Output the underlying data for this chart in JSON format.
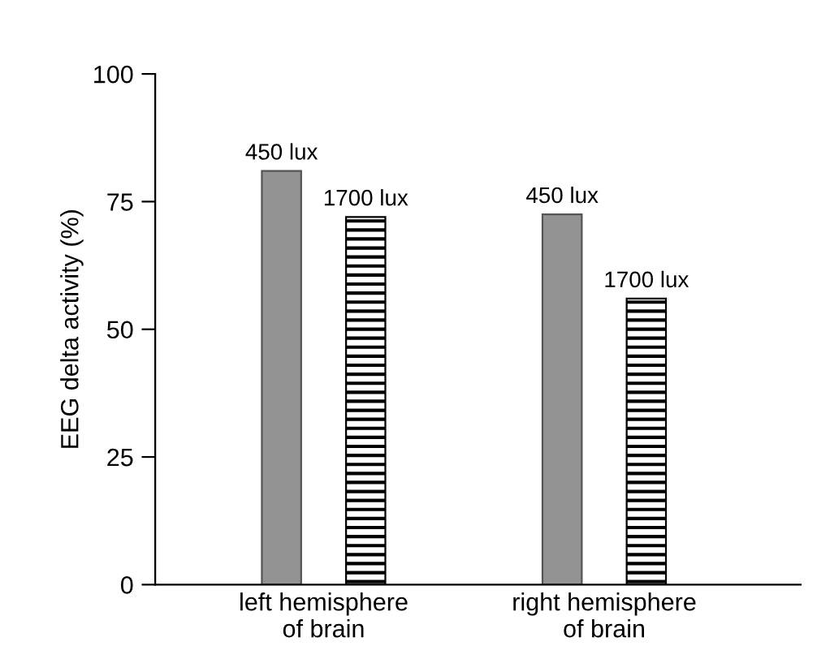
{
  "chart_data": {
    "type": "bar",
    "ylabel": "EEG delta activity (%)",
    "categories": [
      "left hemisphere\nof brain",
      "right hemisphere\nof brain"
    ],
    "series": [
      {
        "name": "450 lux",
        "color": "#939393",
        "values": [
          81,
          72.5
        ]
      },
      {
        "name": "1700 lux",
        "color": "#000000",
        "values": [
          72,
          56
        ]
      }
    ],
    "ylim": [
      0,
      100
    ],
    "yticks": [
      0,
      25,
      50,
      75,
      100
    ],
    "grid": false,
    "legend": false
  }
}
